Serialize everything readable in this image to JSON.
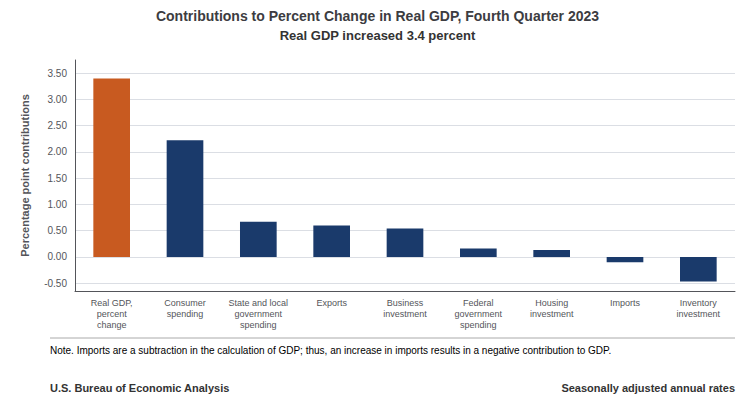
{
  "chart_data": {
    "type": "bar",
    "title": "Contributions to Percent Change in Real GDP, Fourth Quarter 2023",
    "subtitle": "Real GDP increased 3.4 percent",
    "categories": [
      "Real GDP,\npercent\nchange",
      "Consumer\nspending",
      "State and local\ngovernment\nspending",
      "Exports",
      "Business\ninvestment",
      "Federal\ngovernment\nspending",
      "Housing\ninvestment",
      "Imports",
      "Inventory\ninvestment"
    ],
    "values": [
      3.4,
      2.22,
      0.67,
      0.6,
      0.54,
      0.16,
      0.13,
      -0.1,
      -0.47
    ],
    "colors": [
      "#C85A20",
      "#1A3A6B",
      "#1A3A6B",
      "#1A3A6B",
      "#1A3A6B",
      "#1A3A6B",
      "#1A3A6B",
      "#1A3A6B",
      "#1A3A6B"
    ],
    "ylabel": "Percentage point contributions",
    "ylim": [
      -0.65,
      3.75
    ],
    "yticks": [
      {
        "value": -0.5,
        "label": "-0.50"
      },
      {
        "value": 0,
        "label": "0.00"
      },
      {
        "value": 0.5,
        "label": "0.50"
      },
      {
        "value": 1,
        "label": "1.00"
      },
      {
        "value": 1.5,
        "label": "1.50"
      },
      {
        "value": 2,
        "label": "2.00"
      },
      {
        "value": 2.5,
        "label": "2.50"
      },
      {
        "value": 3,
        "label": "3.00"
      },
      {
        "value": 3.5,
        "label": "3.50"
      }
    ],
    "grid": true,
    "annotations": [
      "Note. Imports are a subtraction in the calculation of GDP; thus, an increase in imports results in a negative contribution to GDP.",
      "U.S. Bureau of Economic Analysis",
      "Seasonally adjusted annual rates"
    ]
  }
}
